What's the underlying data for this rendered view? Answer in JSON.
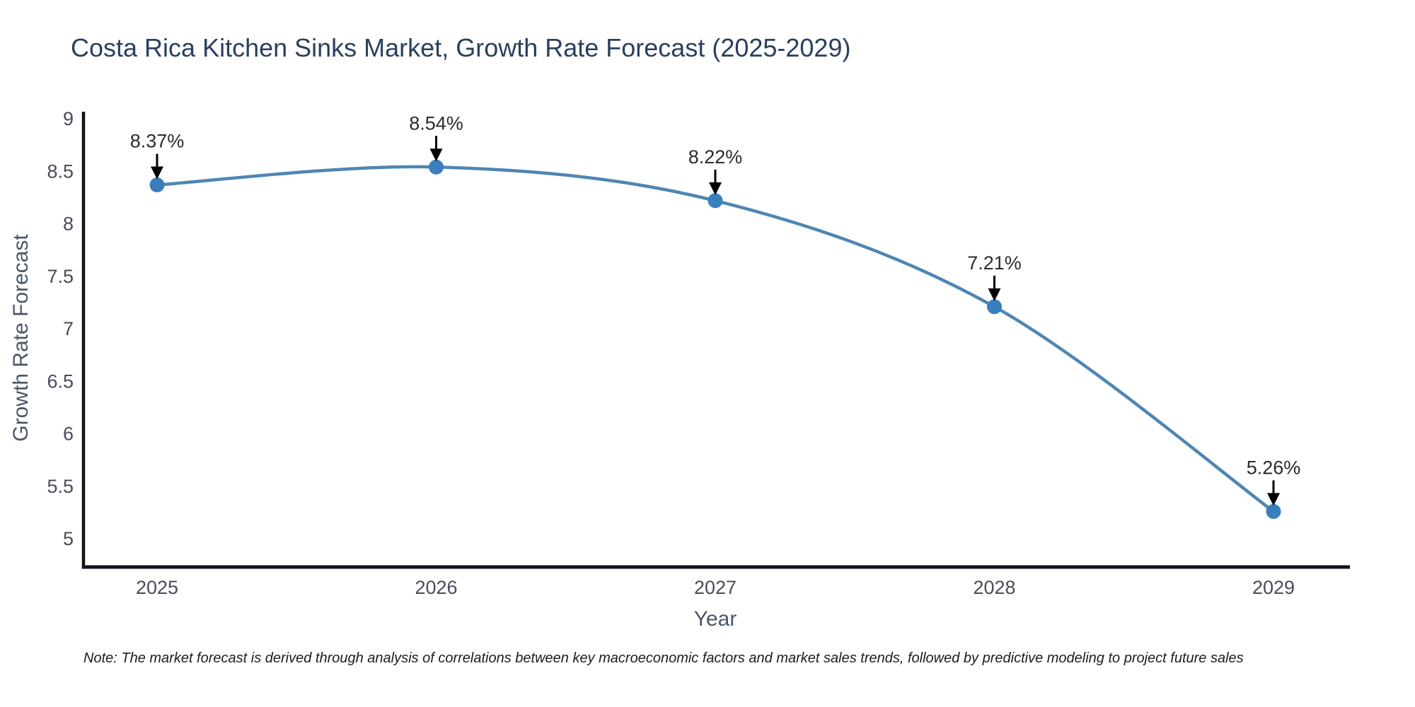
{
  "title": "Costa Rica Kitchen Sinks Market, Growth Rate Forecast (2025-2029)",
  "note": "Note: The market forecast is derived through analysis of correlations between key macroeconomic factors and market sales trends, followed by predictive modeling to project future sales",
  "chart_data": {
    "type": "line",
    "title": "Costa Rica Kitchen Sinks Market, Growth Rate Forecast (2025-2029)",
    "xlabel": "Year",
    "ylabel": "Growth Rate Forecast",
    "categories": [
      "2025",
      "2026",
      "2027",
      "2028",
      "2029"
    ],
    "values": [
      8.37,
      8.54,
      8.22,
      7.21,
      5.26
    ],
    "point_labels": [
      "8.37%",
      "8.54%",
      "8.22%",
      "7.21%",
      "5.26%"
    ],
    "yticks": [
      5,
      5.5,
      6,
      6.5,
      7,
      7.5,
      8,
      8.5,
      9
    ],
    "ylim": [
      4.74,
      9.05
    ],
    "grid": false,
    "legend": false,
    "line_color": "#4e86b3",
    "marker_color": "#3a7ebf",
    "axis_color": "#12121c",
    "tick_color": "#4a4a5a",
    "annotation_text_color": "#2b2b2b",
    "annotation_arrow_color": "#000000"
  }
}
